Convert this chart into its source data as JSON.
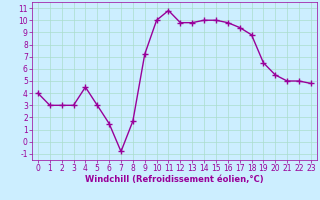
{
  "x": [
    0,
    1,
    2,
    3,
    4,
    5,
    6,
    7,
    8,
    9,
    10,
    11,
    12,
    13,
    14,
    15,
    16,
    17,
    18,
    19,
    20,
    21,
    22,
    23
  ],
  "y": [
    4,
    3,
    3,
    3,
    4.5,
    3,
    1.5,
    -0.8,
    1.7,
    7.2,
    10,
    10.8,
    9.8,
    9.8,
    10,
    10,
    9.8,
    9.4,
    8.8,
    6.5,
    5.5,
    5,
    5,
    4.8
  ],
  "line_color": "#990099",
  "marker": "+",
  "marker_size": 4,
  "linewidth": 1.0,
  "bg_color": "#cceeff",
  "grid_color": "#aaddcc",
  "xlabel": "Windchill (Refroidissement éolien,°C)",
  "xlabel_fontsize": 6,
  "xlim": [
    -0.5,
    23.5
  ],
  "ylim": [
    -1.5,
    11.5
  ],
  "xticks": [
    0,
    1,
    2,
    3,
    4,
    5,
    6,
    7,
    8,
    9,
    10,
    11,
    12,
    13,
    14,
    15,
    16,
    17,
    18,
    19,
    20,
    21,
    22,
    23
  ],
  "yticks": [
    -1,
    0,
    1,
    2,
    3,
    4,
    5,
    6,
    7,
    8,
    9,
    10,
    11
  ],
  "tick_fontsize": 5.5,
  "tick_color": "#990099",
  "label_color": "#990099"
}
